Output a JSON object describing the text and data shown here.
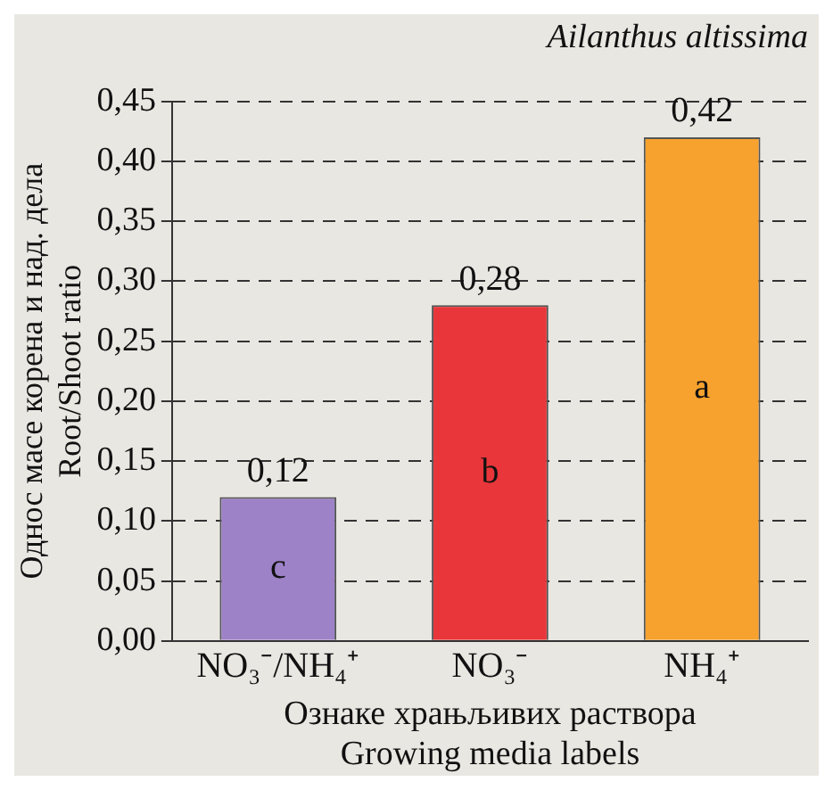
{
  "chart_data": {
    "type": "bar",
    "title": "Ailanthus altissima",
    "ylabel": "Однос масе корена и над. дела\nRoot/Shoot ratio",
    "xlabel": "Ознаке храњљивих раствора\nGrowing media labels",
    "categories": [
      "NO₃⁻/NH₄⁺",
      "NO₃⁻",
      "NH₄⁺"
    ],
    "values": [
      0.12,
      0.28,
      0.42
    ],
    "colors": [
      "#9e82c8",
      "#e8363a",
      "#f7a22e"
    ],
    "value_labels": [
      "0,12",
      "0,28",
      "0,42"
    ],
    "annotations": [
      "c",
      "b",
      "a"
    ],
    "ylim": [
      0,
      0.45
    ],
    "yticks": [
      {
        "value": 0,
        "label": "0,00"
      },
      {
        "value": 0.05,
        "label": "0,05"
      },
      {
        "value": 0.1,
        "label": "0,10"
      },
      {
        "value": 0.15,
        "label": "0,15"
      },
      {
        "value": 0.2,
        "label": "0,20"
      },
      {
        "value": 0.25,
        "label": "0,25"
      },
      {
        "value": 0.3,
        "label": "0,30"
      },
      {
        "value": 0.35,
        "label": "0,35"
      },
      {
        "value": 0.4,
        "label": "0,40"
      },
      {
        "value": 0.45,
        "label": "0,45"
      }
    ],
    "grid": "y",
    "legend": false
  }
}
